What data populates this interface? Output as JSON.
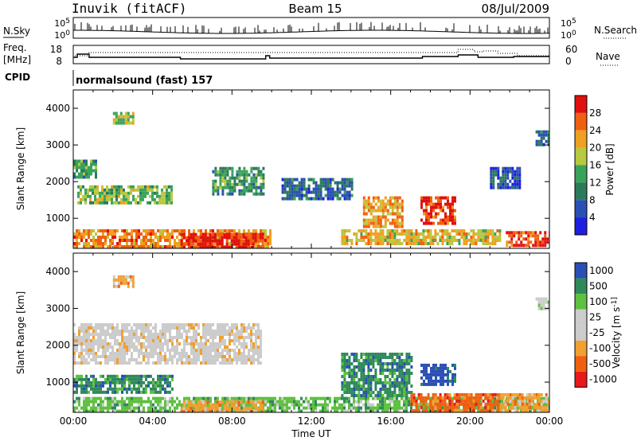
{
  "header": {
    "station": "Inuvik (fitACF)",
    "beam": "Beam 15",
    "date": "08/Jul/2009"
  },
  "noise_panel": {
    "left_label": "N.Sky",
    "left_ticks": [
      "10^5",
      "10^0"
    ],
    "right_label": "N.Search",
    "right_ticks": [
      "10^5",
      "10^0"
    ]
  },
  "freq_panel": {
    "left_label_1": "Freq.",
    "left_label_2": "[MHz]",
    "left_ticks": [
      "18",
      "8"
    ],
    "right_label": "Nave",
    "right_ticks": [
      "60",
      "0"
    ]
  },
  "cpid_panel": {
    "label": "CPID",
    "value": "normalsound (fast) 157"
  },
  "colors": {
    "power_scale": [
      "#1f1fe0",
      "#2a4fb5",
      "#2c7a5a",
      "#3aa35a",
      "#b8c840",
      "#f0a020",
      "#f06010",
      "#e01010"
    ],
    "velocity_scale": [
      "#e81a1a",
      "#f06010",
      "#f0a030",
      "#cccccc",
      "#cccccc",
      "#5ec040",
      "#2e8a5a",
      "#2a4fb5"
    ]
  },
  "chart_data": [
    {
      "type": "heatmap",
      "title": "",
      "xlabel": "",
      "ylabel": "Slant Range [km]",
      "x_ticks": [
        "00:00",
        "04:00",
        "08:00",
        "12:00",
        "16:00",
        "20:00",
        "00:00"
      ],
      "y_ticks": [
        "1000",
        "2000",
        "3000",
        "4000"
      ],
      "ylim": [
        180,
        4500
      ],
      "colorbar": {
        "label": "Power [dB]",
        "ticks": [
          "4",
          "8",
          "12",
          "16",
          "20",
          "24",
          "28"
        ],
        "range": [
          0,
          32
        ]
      },
      "regions": [
        {
          "t0": 0.0,
          "t1": 9.9,
          "r0": 200,
          "r1": 700,
          "level": 24
        },
        {
          "t0": 5.4,
          "t1": 9.6,
          "r0": 200,
          "r1": 600,
          "level": 30
        },
        {
          "t0": 0.2,
          "t1": 5.0,
          "r0": 1400,
          "r1": 1900,
          "level": 16
        },
        {
          "t0": 0.0,
          "t1": 1.2,
          "r0": 2100,
          "r1": 2600,
          "level": 12
        },
        {
          "t0": 14.6,
          "t1": 16.6,
          "r0": 800,
          "r1": 1600,
          "level": 22
        },
        {
          "t0": 17.5,
          "t1": 19.2,
          "r0": 900,
          "r1": 1600,
          "level": 28
        },
        {
          "t0": 13.5,
          "t1": 21.5,
          "r0": 300,
          "r1": 700,
          "level": 20
        },
        {
          "t0": 21.8,
          "t1": 24.0,
          "r0": 300,
          "r1": 650,
          "level": 28
        },
        {
          "t0": 7.0,
          "t1": 9.6,
          "r0": 1700,
          "r1": 2400,
          "level": 12
        },
        {
          "t0": 10.5,
          "t1": 14.0,
          "r0": 1500,
          "r1": 2100,
          "level": 8
        },
        {
          "t0": 21.0,
          "t1": 22.5,
          "r0": 1800,
          "r1": 2400,
          "level": 6
        },
        {
          "t0": 23.3,
          "t1": 24.0,
          "r0": 3000,
          "r1": 3400,
          "level": 8
        },
        {
          "t0": 2.0,
          "t1": 3.0,
          "r0": 3600,
          "r1": 3900,
          "level": 18
        }
      ]
    },
    {
      "type": "heatmap",
      "title": "",
      "xlabel": "Time UT",
      "ylabel": "Slant Range [km]",
      "x_ticks": [
        "00:00",
        "04:00",
        "08:00",
        "12:00",
        "16:00",
        "20:00",
        "00:00"
      ],
      "y_ticks": [
        "1000",
        "2000",
        "3000",
        "4000"
      ],
      "ylim": [
        180,
        4500
      ],
      "colorbar": {
        "label": "Velocity [m s^-1]",
        "ticks": [
          "1000",
          "500",
          "100",
          "25",
          "-25",
          "-100",
          "-500",
          "-1000"
        ]
      },
      "regions": [
        {
          "t0": 0.0,
          "t1": 5.0,
          "r0": 700,
          "r1": 1200,
          "level": 100
        },
        {
          "t0": 0.0,
          "t1": 24.0,
          "r0": 200,
          "r1": 600,
          "level": 25
        },
        {
          "t0": 0.0,
          "t1": 9.5,
          "r0": 1500,
          "r1": 2600,
          "level": 0
        },
        {
          "t0": 13.5,
          "t1": 17.0,
          "r0": 600,
          "r1": 1800,
          "level": 100
        },
        {
          "t0": 17.5,
          "t1": 19.2,
          "r0": 900,
          "r1": 1500,
          "level": 1000
        },
        {
          "t0": 17.0,
          "t1": 21.5,
          "r0": 200,
          "r1": 700,
          "level": -500
        },
        {
          "t0": 5.4,
          "t1": 9.6,
          "r0": 200,
          "r1": 500,
          "level": -100
        },
        {
          "t0": 21.5,
          "t1": 24.0,
          "r0": 200,
          "r1": 700,
          "level": -100
        },
        {
          "t0": 2.0,
          "t1": 3.0,
          "r0": 3600,
          "r1": 3900,
          "level": -100
        },
        {
          "t0": 23.3,
          "t1": 24.0,
          "r0": 3000,
          "r1": 3300,
          "level": -25
        }
      ]
    }
  ]
}
